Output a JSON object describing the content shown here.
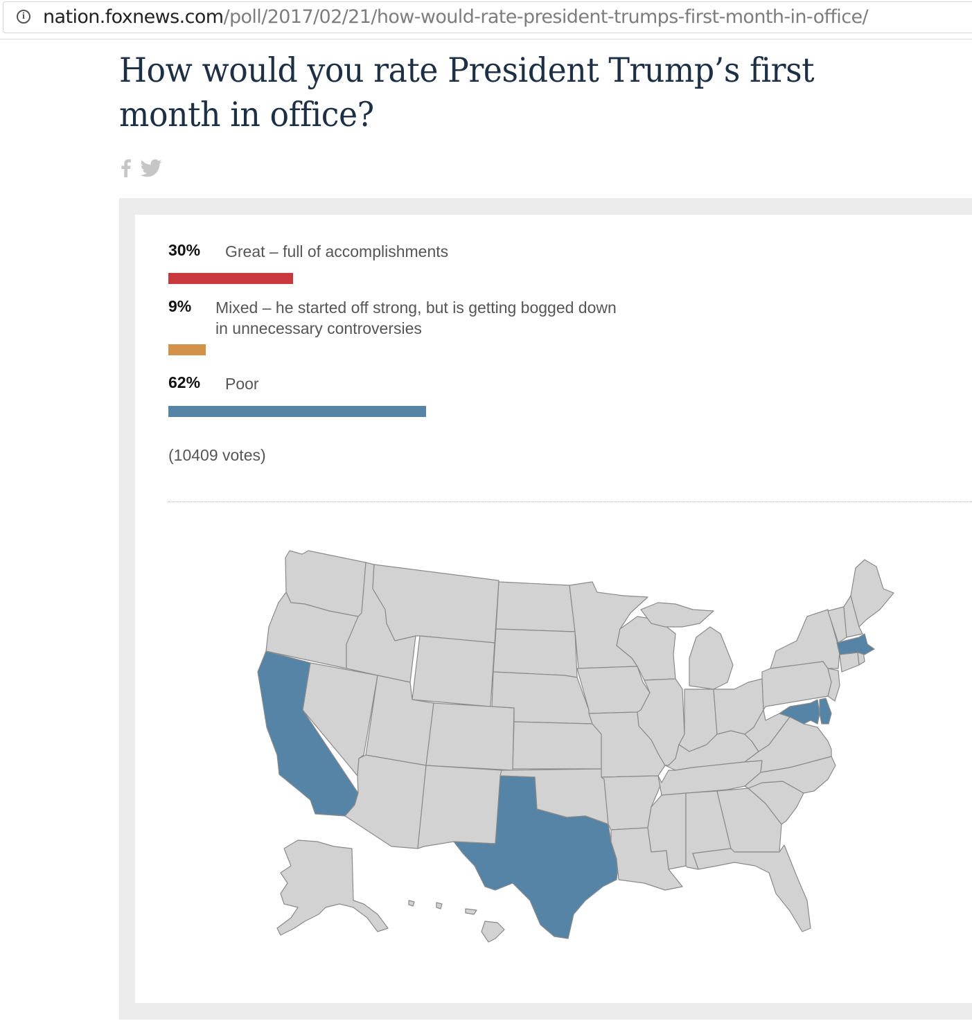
{
  "browser": {
    "url_host": "nation.foxnews.com",
    "url_path": "/poll/2017/02/21/how-would-rate-president-trumps-first-month-in-office/"
  },
  "page": {
    "title": "How would you rate President Trump’s first month in office?"
  },
  "share": {
    "facebook_icon": "facebook-icon",
    "twitter_icon": "twitter-icon"
  },
  "poll": {
    "answers": [
      {
        "percent_label": "30%",
        "percent": 30,
        "label": "Great – full of accomplishments",
        "color": "#c8393d"
      },
      {
        "percent_label": "9%",
        "percent": 9,
        "label": "Mixed – he started off strong, but is getting bogged down in unnecessary controversies",
        "color": "#d3924a"
      },
      {
        "percent_label": "62%",
        "percent": 62,
        "label": "Poor",
        "color": "#5584a6"
      }
    ],
    "votes": "(10409 votes)"
  },
  "map": {
    "colors": {
      "great": "#c8393d",
      "mixed": "#d3924a",
      "poor": "#5584a6",
      "none": "#d2d2d2"
    },
    "states": [
      {
        "id": "WA",
        "result": "none"
      },
      {
        "id": "OR",
        "result": "none"
      },
      {
        "id": "CA",
        "result": "poor"
      },
      {
        "id": "NV",
        "result": "none"
      },
      {
        "id": "ID",
        "result": "none"
      },
      {
        "id": "MT",
        "result": "none"
      },
      {
        "id": "WY",
        "result": "none"
      },
      {
        "id": "UT",
        "result": "none"
      },
      {
        "id": "AZ",
        "result": "none"
      },
      {
        "id": "CO",
        "result": "none"
      },
      {
        "id": "NM",
        "result": "none"
      },
      {
        "id": "ND",
        "result": "none"
      },
      {
        "id": "SD",
        "result": "none"
      },
      {
        "id": "NE",
        "result": "none"
      },
      {
        "id": "KS",
        "result": "none"
      },
      {
        "id": "OK",
        "result": "none"
      },
      {
        "id": "TX",
        "result": "poor"
      },
      {
        "id": "MN",
        "result": "none"
      },
      {
        "id": "IA",
        "result": "none"
      },
      {
        "id": "MO",
        "result": "none"
      },
      {
        "id": "AR",
        "result": "none"
      },
      {
        "id": "LA",
        "result": "none"
      },
      {
        "id": "WI",
        "result": "none"
      },
      {
        "id": "IL",
        "result": "none"
      },
      {
        "id": "MI",
        "result": "none"
      },
      {
        "id": "IN",
        "result": "none"
      },
      {
        "id": "OH",
        "result": "none"
      },
      {
        "id": "KY",
        "result": "none"
      },
      {
        "id": "TN",
        "result": "none"
      },
      {
        "id": "MS",
        "result": "none"
      },
      {
        "id": "AL",
        "result": "none"
      },
      {
        "id": "GA",
        "result": "none"
      },
      {
        "id": "FL",
        "result": "none"
      },
      {
        "id": "SC",
        "result": "none"
      },
      {
        "id": "NC",
        "result": "none"
      },
      {
        "id": "VA",
        "result": "none"
      },
      {
        "id": "WV",
        "result": "none"
      },
      {
        "id": "PA",
        "result": "none"
      },
      {
        "id": "NY",
        "result": "none"
      },
      {
        "id": "NJ",
        "result": "none"
      },
      {
        "id": "DE",
        "result": "poor"
      },
      {
        "id": "MD",
        "result": "poor"
      },
      {
        "id": "CT",
        "result": "none"
      },
      {
        "id": "RI",
        "result": "none"
      },
      {
        "id": "MA",
        "result": "poor"
      },
      {
        "id": "VT",
        "result": "none"
      },
      {
        "id": "NH",
        "result": "none"
      },
      {
        "id": "ME",
        "result": "none"
      },
      {
        "id": "AK",
        "result": "none"
      },
      {
        "id": "HI",
        "result": "none"
      }
    ]
  }
}
